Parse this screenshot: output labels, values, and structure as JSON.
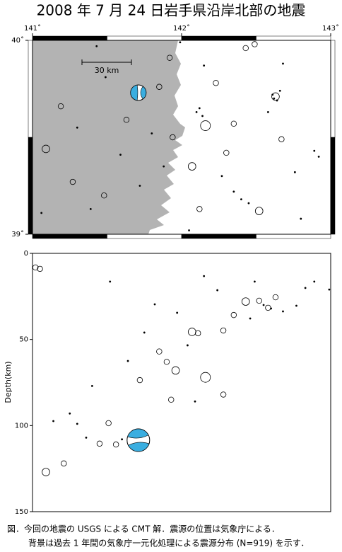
{
  "chart_data": [
    {
      "type": "map",
      "title": "2008 年 7 月 24 日岩手県沿岸北部の地震",
      "xlim": [
        141,
        143
      ],
      "ylim": [
        39,
        40
      ],
      "xticks": [
        {
          "value": 141,
          "label": "141˚"
        },
        {
          "value": 142,
          "label": "142˚"
        },
        {
          "value": 143,
          "label": "143˚"
        }
      ],
      "yticks": [
        {
          "value": 39,
          "label": "39˚"
        },
        {
          "value": 40,
          "label": "40˚"
        }
      ],
      "scale_label": "30 km",
      "land_color": "#b3b3b3",
      "mechanism_color": "#3aaee0",
      "x": [
        142.16,
        142.07,
        141.09,
        141.63,
        142.63,
        142.52,
        142.43,
        141.85,
        141.48,
        141.27,
        142.67,
        142.3,
        142.49,
        141.43,
        141.92,
        142.12,
        142.35,
        142.76,
        142.89,
        142.23,
        142.15,
        141.94,
        141.59,
        141.39,
        141.19,
        142.58,
        142.8,
        141.99,
        141.88,
        141.06,
        141.49,
        142.35,
        142.68,
        142.27,
        142.62,
        142.64,
        142.12,
        142.1,
        142.14,
        142.61,
        142.66,
        141.72,
        141.8,
        142.4,
        142.45,
        141.3,
        142.05,
        142.92
      ],
      "y": [
        39.56,
        39.35,
        39.44,
        39.59,
        39.71,
        39.12,
        39.96,
        39.76,
        39.2,
        39.27,
        39.49,
        39.42,
        39.98,
        39.97,
        39.91,
        39.13,
        39.22,
        39.32,
        39.43,
        39.78,
        39.87,
        39.5,
        39.41,
        39.13,
        39.66,
        39.63,
        39.08,
        39.99,
        39.35,
        39.11,
        39.81,
        39.57,
        39.88,
        39.3,
        39.7,
        39.69,
        39.65,
        39.63,
        39.61,
        39.72,
        39.74,
        39.25,
        39.52,
        39.18,
        39.16,
        39.55,
        39.02,
        39.4
      ],
      "sizes": [
        4,
        3,
        3,
        2,
        3,
        3,
        2,
        2,
        2,
        2,
        2,
        2,
        2,
        1,
        2,
        2,
        1,
        1,
        1,
        2,
        1,
        2,
        1,
        1,
        2,
        1,
        1,
        1,
        1,
        1,
        1,
        2,
        1,
        1,
        1,
        1,
        1,
        1,
        1,
        1,
        1,
        1,
        1,
        1,
        1,
        1,
        1,
        1
      ],
      "mechanism": {
        "x": 141.71,
        "y": 39.73
      }
    },
    {
      "type": "section",
      "xlim": [
        141,
        143
      ],
      "ylim": [
        0,
        150
      ],
      "y_inverted": true,
      "yticks": [
        0,
        50,
        100,
        150
      ],
      "ylabel": "Depth(km)",
      "mechanism_color": "#3aaee0",
      "x": [
        141.02,
        141.09,
        142.16,
        142.07,
        141.93,
        141.96,
        141.56,
        141.45,
        142.43,
        142.63,
        142.52,
        142.28,
        142.58,
        142.83,
        142.99,
        142.11,
        141.85,
        141.9,
        142.28,
        142.09,
        141.3,
        141.51,
        141.21,
        141.36,
        141.72,
        141.4,
        142.15,
        141.52,
        142.35,
        142.46,
        142.68,
        142.77,
        141.97,
        142.24,
        141.75,
        141.64,
        141.25,
        141.14,
        141.82,
        142.04,
        142.49,
        142.89,
        141.05,
        142.55,
        142.6,
        141.6
      ],
      "y": [
        8.2,
        127,
        72,
        45.6,
        85,
        68,
        111,
        110.5,
        28,
        25.5,
        27.5,
        44.8,
        31.6,
        20.1,
        21.0,
        46.4,
        57,
        63,
        82,
        86,
        99,
        98.6,
        122,
        107,
        73.6,
        77,
        13.2,
        16.4,
        35.8,
        37.8,
        33.7,
        30.4,
        34.5,
        21.4,
        46,
        62.5,
        93,
        97.4,
        29.6,
        53.4,
        16.4,
        16.4,
        9,
        30,
        32,
        108
      ],
      "sizes": [
        2,
        3,
        4,
        3,
        2,
        3,
        2,
        2,
        3,
        2,
        2,
        2,
        2,
        1,
        1,
        2,
        2,
        2,
        2,
        1,
        1,
        2,
        2,
        1,
        2,
        1,
        1,
        1,
        2,
        1,
        1,
        1,
        1,
        1,
        1,
        1,
        1,
        1,
        1,
        1,
        1,
        1,
        2,
        1,
        1,
        1
      ],
      "mechanism": {
        "x": 141.71,
        "y": 108.5
      }
    }
  ],
  "caption": {
    "lines": [
      "図．今回の地震の USGS による CMT 解．震源の位置は気象庁による．",
      "背景は過去 1 年間の気象庁一元化処理による震源分布 (N=919) を示す．"
    ]
  }
}
